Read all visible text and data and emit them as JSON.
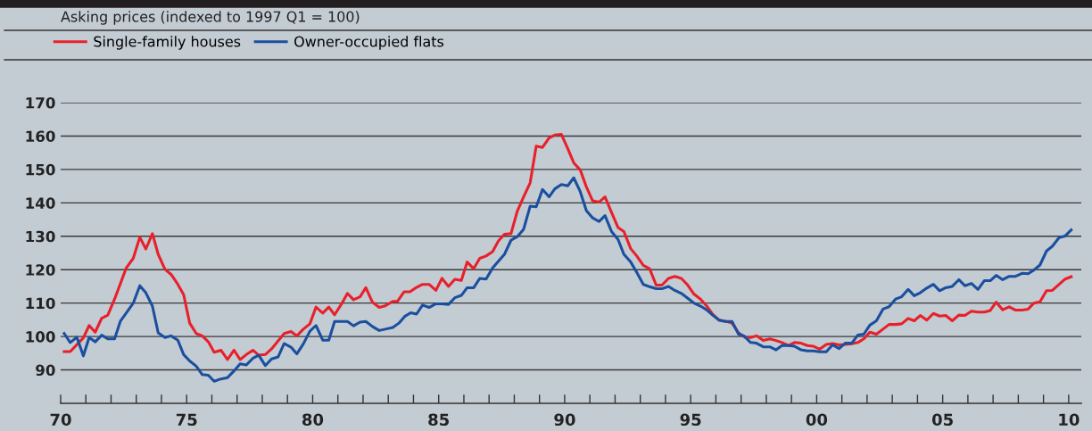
{
  "chart_data": {
    "type": "line",
    "title": "Asking prices (indexed to 1997 Q1 = 100)",
    "legend": "top left",
    "grid": "y",
    "line_style": "solid",
    "marker": "none",
    "xlim": [
      1970,
      2010.5
    ],
    "xticks": [
      {
        "value": 1970,
        "label": "70"
      },
      {
        "value": 1971,
        "label": null
      },
      {
        "value": 1972,
        "label": null
      },
      {
        "value": 1973,
        "label": null
      },
      {
        "value": 1974,
        "label": null
      },
      {
        "value": 1975,
        "label": "75"
      },
      {
        "value": 1976,
        "label": null
      },
      {
        "value": 1977,
        "label": null
      },
      {
        "value": 1978,
        "label": null
      },
      {
        "value": 1979,
        "label": null
      },
      {
        "value": 1980,
        "label": "80"
      },
      {
        "value": 1981,
        "label": null
      },
      {
        "value": 1982,
        "label": null
      },
      {
        "value": 1983,
        "label": null
      },
      {
        "value": 1984,
        "label": null
      },
      {
        "value": 1985,
        "label": "85"
      },
      {
        "value": 1986,
        "label": null
      },
      {
        "value": 1987,
        "label": null
      },
      {
        "value": 1988,
        "label": null
      },
      {
        "value": 1989,
        "label": null
      },
      {
        "value": 1990,
        "label": "90"
      },
      {
        "value": 1991,
        "label": null
      },
      {
        "value": 1992,
        "label": null
      },
      {
        "value": 1993,
        "label": null
      },
      {
        "value": 1994,
        "label": null
      },
      {
        "value": 1995,
        "label": "95"
      },
      {
        "value": 1996,
        "label": null
      },
      {
        "value": 1997,
        "label": null
      },
      {
        "value": 1998,
        "label": null
      },
      {
        "value": 1999,
        "label": null
      },
      {
        "value": 2000,
        "label": "00"
      },
      {
        "value": 2001,
        "label": null
      },
      {
        "value": 2002,
        "label": null
      },
      {
        "value": 2003,
        "label": null
      },
      {
        "value": 2004,
        "label": null
      },
      {
        "value": 2005,
        "label": "05"
      },
      {
        "value": 2006,
        "label": null
      },
      {
        "value": 2007,
        "label": null
      },
      {
        "value": 2008,
        "label": null
      },
      {
        "value": 2009,
        "label": null
      },
      {
        "value": 2010,
        "label": "10"
      }
    ],
    "ylim": [
      80,
      170
    ],
    "yticks": [
      90,
      100,
      110,
      120,
      130,
      140,
      150,
      160,
      170
    ],
    "series": [
      {
        "name": "Single-family houses",
        "color": "#e8202a",
        "x": [
          1970.14,
          1970.38,
          1970.9,
          1971.13,
          1971.37,
          1971.63,
          1971.87,
          1972.14,
          1972.6,
          1972.88,
          1973.14,
          1973.38,
          1973.64,
          1973.87,
          1974.14,
          1974.38,
          1974.65,
          1974.88,
          1975.12,
          1975.38,
          1975.62,
          1975.86,
          1976.09,
          1976.36,
          1976.62,
          1976.88,
          1977.12,
          1977.37,
          1977.63,
          1977.86,
          1978.12,
          1978.37,
          1978.63,
          1978.87,
          1979.14,
          1979.37,
          1979.63,
          1979.89,
          1980.13,
          1980.4,
          1980.64,
          1980.87,
          1981.15,
          1981.38,
          1981.62,
          1981.88,
          1982.11,
          1982.37,
          1982.64,
          1982.88,
          1983.18,
          1983.36,
          1983.63,
          1983.86,
          1984.12,
          1984.36,
          1984.62,
          1984.89,
          1985.13,
          1985.39,
          1985.64,
          1985.9,
          1986.13,
          1986.39,
          1986.63,
          1986.88,
          1987.14,
          1987.37,
          1987.61,
          1987.87,
          1988.12,
          1988.37,
          1988.63,
          1988.87,
          1989.12,
          1989.38,
          1989.61,
          1989.87,
          1990.12,
          1990.36,
          1990.62,
          1990.86,
          1991.11,
          1991.36,
          1991.6,
          1991.86,
          1992.12,
          1992.35,
          1992.62,
          1992.86,
          1993.12,
          1993.37,
          1993.63,
          1993.86,
          1994.12,
          1994.37,
          1994.63,
          1994.86,
          1995.13,
          1995.39,
          1995.63,
          1995.87,
          1996.13,
          1996.37,
          1996.64,
          1996.9,
          1997.17,
          1997.38,
          1997.61,
          1997.88,
          1998.14,
          1998.39,
          1998.62,
          1998.88,
          1999.12,
          1999.38,
          1999.63,
          1999.86,
          2000.12,
          2000.38,
          2000.63,
          2000.89,
          2001.13,
          2001.39,
          2001.63,
          2001.87,
          2002.11,
          2002.37,
          2002.63,
          2002.87,
          2003.13,
          2003.37,
          2003.63,
          2003.87,
          2004.11,
          2004.37,
          2004.63,
          2004.88,
          2005.12,
          2005.38,
          2005.64,
          2005.88,
          2006.14,
          2006.4,
          2006.65,
          2006.89,
          2007.12,
          2007.38,
          2007.64,
          2007.89,
          2008.15,
          2008.39,
          2008.62,
          2008.86,
          2009.12,
          2009.35,
          2009.62,
          2009.86,
          2010.1
        ],
        "values": [
          95.5,
          95.5,
          99.6,
          103.3,
          101.3,
          105.5,
          106.4,
          111.2,
          120.5,
          123.4,
          129.7,
          126.2,
          130.8,
          124.6,
          120.1,
          118.6,
          115.6,
          112.5,
          104.0,
          100.9,
          100.2,
          98.4,
          95.3,
          95.9,
          93.1,
          95.9,
          93.1,
          94.6,
          95.9,
          94.4,
          94.6,
          96.3,
          98.7,
          100.9,
          101.5,
          100.2,
          102.2,
          103.8,
          108.8,
          107.0,
          108.8,
          106.5,
          109.8,
          112.9,
          111.0,
          111.9,
          114.6,
          110.3,
          108.7,
          109.2,
          110.5,
          110.5,
          113.4,
          113.4,
          114.7,
          115.6,
          115.6,
          113.8,
          117.4,
          115.0,
          117.1,
          116.8,
          122.3,
          120.3,
          123.4,
          124.1,
          125.4,
          128.6,
          130.6,
          130.8,
          137.5,
          141.8,
          146.0,
          157.0,
          156.6,
          159.4,
          160.3,
          160.5,
          156.3,
          152.0,
          149.8,
          144.8,
          140.6,
          140.2,
          141.8,
          137.1,
          132.6,
          131.4,
          126.3,
          124.1,
          121.3,
          120.3,
          115.4,
          115.4,
          117.4,
          118.0,
          117.4,
          115.6,
          112.7,
          111.2,
          109.2,
          106.7,
          104.9,
          104.6,
          104.0,
          101.1,
          99.7,
          99.7,
          100.2,
          98.8,
          99.3,
          98.8,
          98.2,
          97.3,
          98.2,
          98.0,
          97.3,
          97.1,
          96.2,
          97.6,
          97.9,
          97.5,
          97.6,
          97.8,
          98.2,
          99.3,
          101.3,
          100.7,
          102.2,
          103.6,
          103.6,
          103.8,
          105.4,
          104.7,
          106.3,
          104.9,
          106.9,
          106.1,
          106.3,
          104.7,
          106.4,
          106.3,
          107.6,
          107.3,
          107.3,
          107.8,
          110.3,
          108.0,
          108.9,
          107.9,
          107.9,
          108.2,
          110.0,
          110.4,
          113.7,
          113.8,
          115.6,
          117.2,
          117.9
        ]
      },
      {
        "name": "Owner-occupied flats",
        "color": "#1a4f9f",
        "x": [
          1970.14,
          1970.38,
          1970.64,
          1970.9,
          1971.13,
          1971.37,
          1971.63,
          1971.87,
          1972.14,
          1972.37,
          1972.6,
          1972.88,
          1973.14,
          1973.38,
          1973.64,
          1973.87,
          1974.14,
          1974.38,
          1974.65,
          1974.88,
          1975.12,
          1975.38,
          1975.62,
          1975.86,
          1976.09,
          1976.36,
          1976.62,
          1976.88,
          1977.12,
          1977.37,
          1977.63,
          1977.86,
          1978.12,
          1978.37,
          1978.63,
          1978.87,
          1979.14,
          1979.37,
          1979.63,
          1979.89,
          1980.13,
          1980.4,
          1980.64,
          1980.87,
          1981.15,
          1981.38,
          1981.62,
          1981.88,
          1982.11,
          1982.37,
          1982.64,
          1982.88,
          1983.18,
          1983.42,
          1983.65,
          1983.89,
          1984.12,
          1984.36,
          1984.62,
          1984.89,
          1985.13,
          1985.39,
          1985.64,
          1985.9,
          1986.13,
          1986.39,
          1986.63,
          1986.88,
          1987.14,
          1987.37,
          1987.61,
          1987.87,
          1988.12,
          1988.37,
          1988.63,
          1988.87,
          1989.12,
          1989.38,
          1989.61,
          1989.87,
          1990.12,
          1990.36,
          1990.62,
          1990.86,
          1991.11,
          1991.36,
          1991.6,
          1991.86,
          1992.12,
          1992.35,
          1992.62,
          1992.86,
          1993.12,
          1993.37,
          1993.63,
          1993.86,
          1994.12,
          1994.37,
          1994.63,
          1994.86,
          1995.13,
          1995.39,
          1995.63,
          1995.87,
          1996.13,
          1996.37,
          1996.64,
          1996.9,
          1997.11,
          1997.38,
          1997.61,
          1997.88,
          1998.14,
          1998.39,
          1998.62,
          1998.88,
          1999.12,
          1999.38,
          1999.63,
          1999.86,
          2000.12,
          2000.38,
          2000.63,
          2000.89,
          2001.13,
          2001.39,
          2001.63,
          2001.87,
          2002.11,
          2002.37,
          2002.63,
          2002.87,
          2003.13,
          2003.37,
          2003.63,
          2003.87,
          2004.11,
          2004.37,
          2004.63,
          2004.88,
          2005.12,
          2005.38,
          2005.64,
          2005.88,
          2006.14,
          2006.4,
          2006.65,
          2006.89,
          2007.12,
          2007.38,
          2007.64,
          2007.89,
          2008.15,
          2008.39,
          2008.62,
          2008.86,
          2009.12,
          2009.35,
          2009.62,
          2009.86,
          2010.1
        ],
        "values": [
          100.9,
          98.2,
          99.8,
          94.2,
          99.7,
          98.4,
          100.4,
          99.3,
          99.3,
          104.6,
          107.0,
          110.0,
          115.2,
          113.1,
          109.1,
          101.1,
          99.7,
          100.2,
          98.9,
          94.6,
          92.7,
          91.1,
          88.6,
          88.4,
          86.6,
          87.3,
          87.7,
          89.7,
          91.8,
          91.5,
          93.5,
          94.4,
          91.3,
          93.3,
          93.9,
          97.9,
          96.8,
          94.8,
          97.8,
          101.6,
          103.3,
          98.9,
          98.9,
          104.5,
          104.5,
          104.5,
          103.2,
          104.3,
          104.5,
          103.0,
          101.8,
          102.2,
          102.7,
          104.0,
          106.0,
          107.1,
          106.7,
          109.4,
          108.7,
          109.8,
          109.8,
          109.6,
          111.6,
          112.3,
          114.6,
          114.6,
          117.4,
          117.2,
          120.5,
          122.5,
          124.6,
          128.8,
          129.9,
          132.1,
          139.0,
          138.8,
          144.0,
          141.8,
          144.2,
          145.5,
          145.1,
          147.5,
          143.3,
          137.7,
          135.5,
          134.4,
          136.2,
          131.4,
          129.0,
          124.6,
          122.3,
          119.2,
          115.6,
          114.9,
          114.3,
          114.3,
          115.0,
          113.8,
          112.9,
          111.6,
          110.0,
          109.1,
          108.0,
          106.4,
          104.9,
          104.5,
          104.5,
          100.7,
          100.2,
          98.2,
          98.0,
          96.9,
          96.9,
          96.0,
          97.3,
          97.3,
          97.1,
          96.0,
          95.7,
          95.7,
          95.4,
          95.4,
          97.5,
          96.4,
          98.0,
          98.0,
          100.4,
          100.7,
          103.4,
          104.7,
          108.2,
          108.9,
          111.2,
          111.9,
          114.1,
          112.2,
          113.1,
          114.5,
          115.6,
          113.7,
          114.6,
          115.0,
          117.0,
          115.2,
          115.9,
          114.1,
          116.7,
          116.7,
          118.3,
          117.0,
          118.0,
          118.0,
          118.9,
          118.8,
          119.9,
          121.4,
          125.6,
          127.0,
          129.6,
          130.1,
          131.9
        ]
      }
    ]
  }
}
